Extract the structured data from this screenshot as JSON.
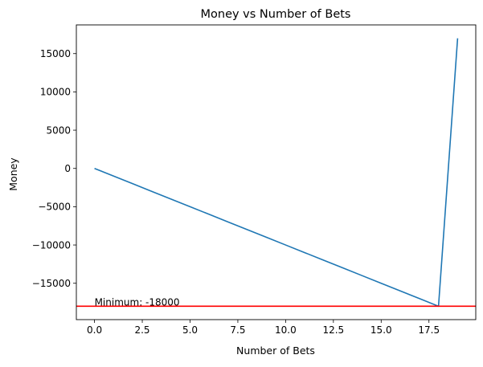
{
  "chart_data": {
    "type": "line",
    "title": "Money vs Number of Bets",
    "xlabel": "Number of Bets",
    "ylabel": "Money",
    "xlim": [
      -0.95,
      19.95
    ],
    "ylim": [
      -19750,
      18750
    ],
    "x_ticks": [
      0,
      2.5,
      5,
      7.5,
      10,
      12.5,
      15,
      17.5
    ],
    "x_tick_labels": [
      "0.0",
      "2.5",
      "5.0",
      "7.5",
      "10.0",
      "12.5",
      "15.0",
      "17.5"
    ],
    "y_ticks": [
      -15000,
      -10000,
      -5000,
      0,
      5000,
      10000,
      15000
    ],
    "y_tick_labels": [
      "−15000",
      "−10000",
      "−5000",
      "0",
      "5000",
      "10000",
      "15000"
    ],
    "series": [
      {
        "color": "#1f77b4",
        "x": [
          0,
          1,
          2,
          3,
          4,
          5,
          6,
          7,
          8,
          9,
          10,
          11,
          12,
          13,
          14,
          15,
          16,
          17,
          18,
          19
        ],
        "values": [
          0,
          -1000,
          -2000,
          -3000,
          -4000,
          -5000,
          -6000,
          -7000,
          -8000,
          -9000,
          -10000,
          -11000,
          -12000,
          -13000,
          -14000,
          -15000,
          -16000,
          -17000,
          -18000,
          17000
        ]
      }
    ],
    "hline": {
      "value": -18000,
      "color": "#ff0000"
    },
    "annotation": {
      "text": "Minimum: -18000",
      "x": 0,
      "y": -18000
    },
    "grid": false,
    "legend": "none"
  }
}
